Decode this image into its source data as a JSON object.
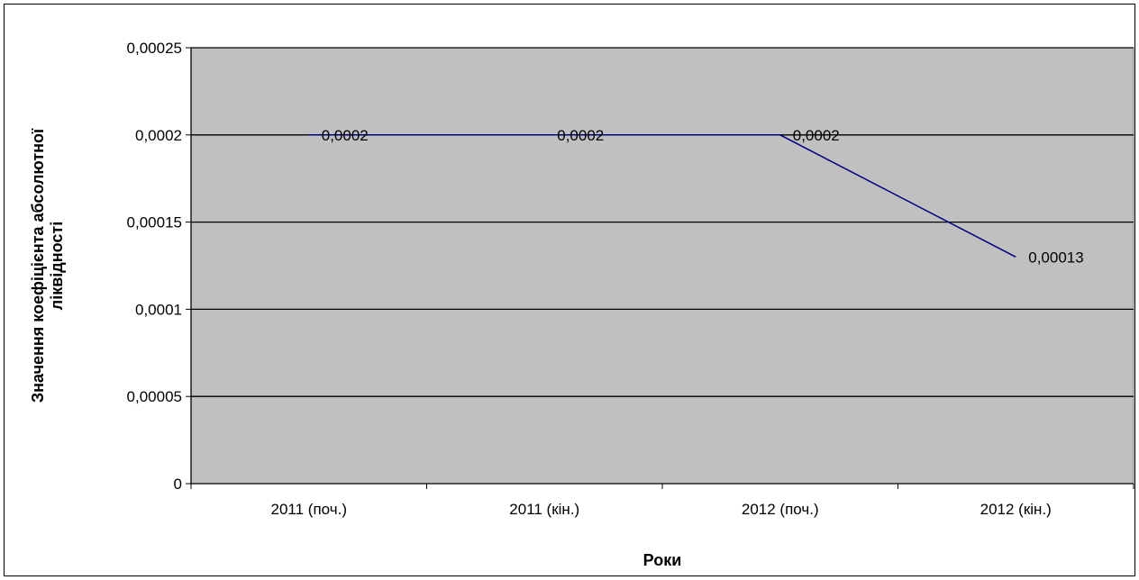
{
  "chart_data": {
    "type": "line",
    "categories": [
      "2011 (поч.)",
      "2011 (кін.)",
      "2012 (поч.)",
      "2012 (кін.)"
    ],
    "series": [
      {
        "values": [
          0.0002,
          0.0002,
          0.0002,
          0.00013
        ],
        "value_labels": [
          "0,0002",
          "0,0002",
          "0,0002",
          "0,00013"
        ]
      }
    ],
    "xlabel": "Роки",
    "ylabel_line1": "Значення коефіцієнта абсолютної",
    "ylabel_line2": "ліквідності",
    "ylim": [
      0,
      0.00025
    ],
    "yticks": [
      0,
      5e-05,
      0.0001,
      0.00015,
      0.0002,
      0.00025
    ],
    "ytick_labels": [
      "0",
      "0,00005",
      "0,0001",
      "0,00015",
      "0,0002",
      "0,00025"
    ],
    "grid": true,
    "legend": "none",
    "colors": {
      "plot_background": "#c0c0c0",
      "line": "#000080",
      "gridlines": "#000000",
      "frame": "#000000"
    }
  }
}
